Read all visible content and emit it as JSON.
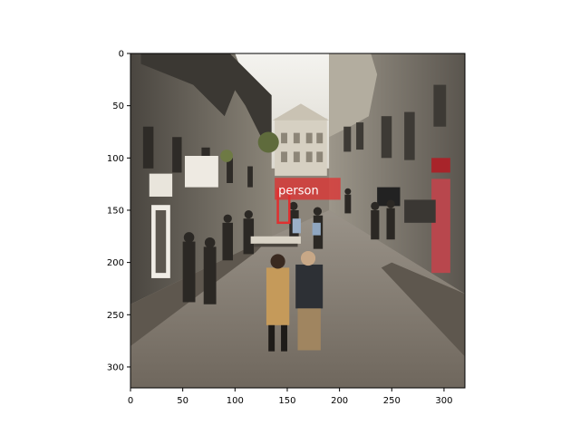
{
  "figure": {
    "x_ticks": [
      {
        "value": 0,
        "label": "0"
      },
      {
        "value": 50,
        "label": "50"
      },
      {
        "value": 100,
        "label": "100"
      },
      {
        "value": 150,
        "label": "150"
      },
      {
        "value": 200,
        "label": "200"
      },
      {
        "value": 250,
        "label": "250"
      },
      {
        "value": 300,
        "label": "300"
      }
    ],
    "y_ticks": [
      {
        "value": 0,
        "label": "0"
      },
      {
        "value": 50,
        "label": "50"
      },
      {
        "value": 100,
        "label": "100"
      },
      {
        "value": 150,
        "label": "150"
      },
      {
        "value": 200,
        "label": "200"
      },
      {
        "value": 250,
        "label": "250"
      },
      {
        "value": 300,
        "label": "300"
      }
    ],
    "xlim": [
      0,
      320
    ],
    "ylim": [
      320,
      0
    ],
    "detection": {
      "label": "person",
      "box": {
        "x0": 141,
        "y0": 130,
        "x1": 152,
        "y1": 162
      },
      "label_box": {
        "x0": 138,
        "y0": 119,
        "x1": 201,
        "y1": 140
      },
      "color": "#e03030"
    }
  }
}
